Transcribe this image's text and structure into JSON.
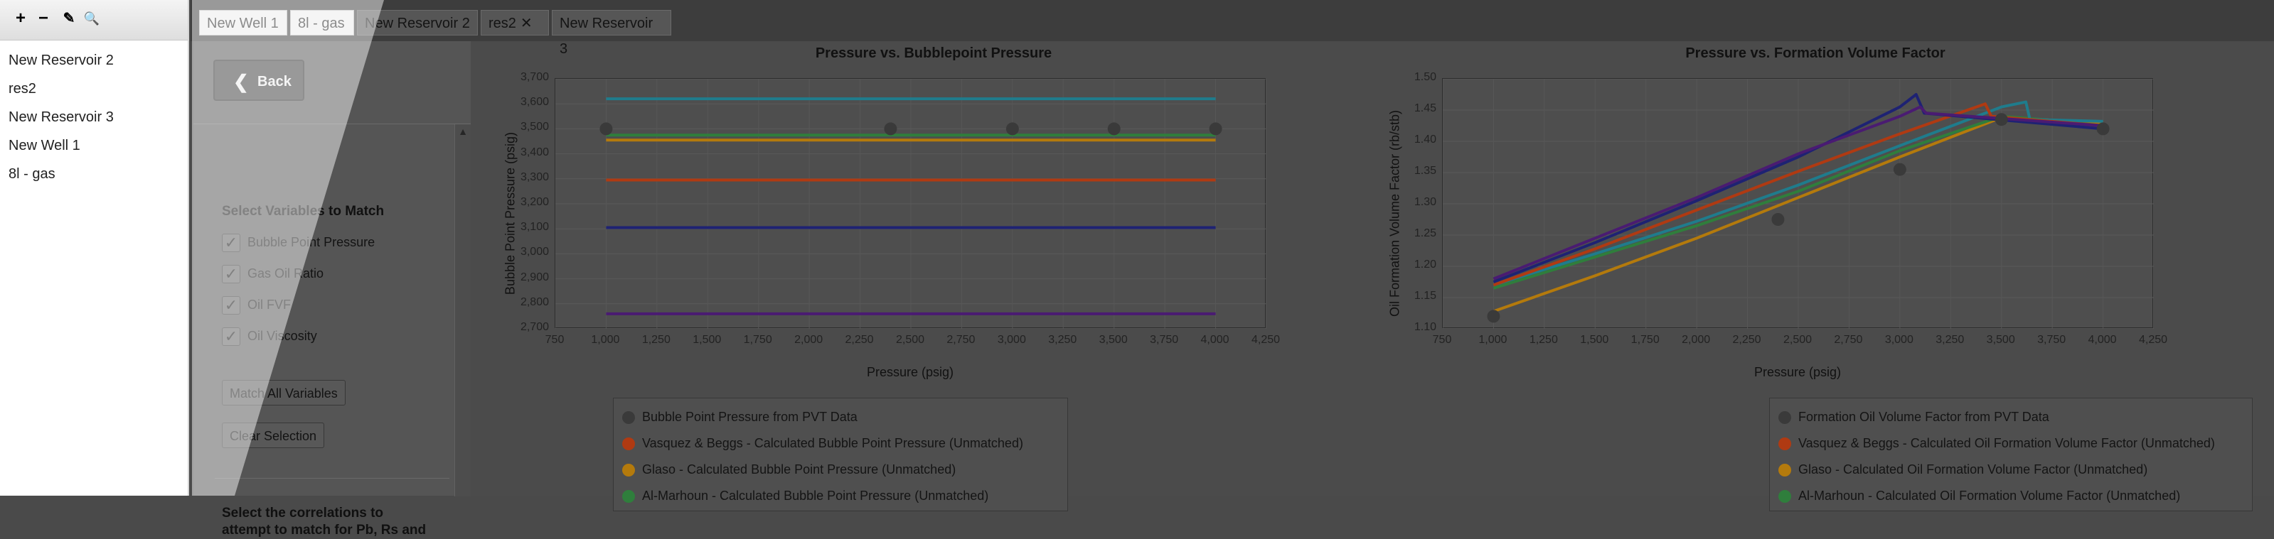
{
  "toolbar": {
    "icons": [
      {
        "name": "add-icon",
        "glyph": "+",
        "color": "#1f9a2c"
      },
      {
        "name": "remove-icon",
        "glyph": "−",
        "color": "#d8211d"
      },
      {
        "name": "edit-icon",
        "glyph": "✎",
        "color": "#e2a21a"
      },
      {
        "name": "search-icon",
        "glyph": "🔍",
        "color": "#2b6cc4"
      }
    ]
  },
  "sidebar": {
    "items": [
      {
        "label": "New Reservoir 2"
      },
      {
        "label": "res2"
      },
      {
        "label": "New Reservoir 3"
      },
      {
        "label": "New Well 1"
      },
      {
        "label": "8l - gas"
      }
    ]
  },
  "tabs": [
    {
      "label": "New Well 1",
      "closable": false
    },
    {
      "label": "8l - gas",
      "closable": false
    },
    {
      "label": "New Reservoir 2",
      "closable": false
    },
    {
      "label": "res2",
      "closable": true,
      "close_glyph": "✕"
    },
    {
      "label": "New Reservoir 3",
      "closable": false
    }
  ],
  "settings": {
    "back_label": "Back",
    "back_glyph": "❮",
    "scroll_up_glyph": "▲",
    "section_title": "Select Variables to Match",
    "checkboxes": [
      {
        "label": "Bubble Point Pressure",
        "checked": true
      },
      {
        "label": "Gas Oil Ratio",
        "checked": true
      },
      {
        "label": "Oil FVF",
        "checked": true
      },
      {
        "label": "Oil Viscosity",
        "checked": true
      }
    ],
    "check_glyph": "✓",
    "match_all_label": "Match All Variables",
    "clear_label": "Clear Selection",
    "correlations_text": "Select the correlations to attempt to match for Pb, Rs and"
  },
  "colors": {
    "pvt": "#3a3a3a",
    "vasquez": "#b03a12",
    "glaso": "#b47a0c",
    "almarhoun": "#2f7e3c",
    "cyan": "#1f7c8c",
    "navy": "#1e2273",
    "purple": "#4a1b72"
  },
  "chart_data": [
    {
      "type": "line",
      "title": "Pressure vs. Bubblepoint Pressure",
      "xlabel": "Pressure (psig)",
      "ylabel": "Bubble Point Pressure (psig)",
      "xlim": [
        750,
        4250
      ],
      "ylim": [
        2700,
        3700
      ],
      "xticks": [
        750,
        1000,
        1250,
        1500,
        1750,
        2000,
        2250,
        2500,
        2750,
        3000,
        3250,
        3500,
        3750,
        4000,
        4250
      ],
      "yticks": [
        2700,
        2800,
        2900,
        3000,
        3100,
        3200,
        3300,
        3400,
        3500,
        3600,
        3700
      ],
      "grid": true,
      "points": {
        "name": "Bubble Point Pressure from PVT Data",
        "x": [
          1000,
          2400,
          3000,
          3500,
          4000
        ],
        "y": [
          3500,
          3500,
          3500,
          3500,
          3500
        ]
      },
      "series": [
        {
          "color_key": "cyan",
          "x": [
            1000,
            4000
          ],
          "y": [
            3620,
            3620
          ]
        },
        {
          "color_key": "almarhoun",
          "x": [
            1000,
            4000
          ],
          "y": [
            3475,
            3475
          ]
        },
        {
          "color_key": "glaso",
          "x": [
            1000,
            4000
          ],
          "y": [
            3455,
            3455
          ]
        },
        {
          "color_key": "vasquez",
          "x": [
            1000,
            4000
          ],
          "y": [
            3295,
            3295
          ]
        },
        {
          "color_key": "navy",
          "x": [
            1000,
            4000
          ],
          "y": [
            3105,
            3105
          ]
        },
        {
          "color_key": "purple",
          "x": [
            1000,
            4000
          ],
          "y": [
            2760,
            2760
          ]
        }
      ],
      "legend": [
        {
          "label": "Bubble Point Pressure from PVT Data",
          "color_key": "pvt"
        },
        {
          "label": "Vasquez & Beggs - Calculated Bubble Point Pressure (Unmatched)",
          "color_key": "vasquez"
        },
        {
          "label": "Glaso - Calculated Bubble Point Pressure (Unmatched)",
          "color_key": "glaso"
        },
        {
          "label": "Al-Marhoun - Calculated Bubble Point Pressure (Unmatched)",
          "color_key": "almarhoun"
        }
      ]
    },
    {
      "type": "line",
      "title": "Pressure vs. Formation Volume Factor",
      "xlabel": "Pressure (psig)",
      "ylabel": "Oil Formation Volume Factor (rb/stb)",
      "xlim": [
        750,
        4250
      ],
      "ylim": [
        1.1,
        1.5
      ],
      "xticks": [
        750,
        1000,
        1250,
        1500,
        1750,
        2000,
        2250,
        2500,
        2750,
        3000,
        3250,
        3500,
        3750,
        4000,
        4250
      ],
      "yticks": [
        1.1,
        1.15,
        1.2,
        1.25,
        1.3,
        1.35,
        1.4,
        1.45,
        1.5
      ],
      "grid": true,
      "points": {
        "name": "Formation Oil Volume Factor from PVT Data",
        "x": [
          1000,
          2400,
          3000,
          3500,
          4000
        ],
        "y": [
          1.12,
          1.275,
          1.355,
          1.435,
          1.42
        ]
      },
      "series": [
        {
          "color_key": "glaso",
          "x": [
            1000,
            1500,
            2000,
            2500,
            3000,
            3500,
            3620,
            4000
          ],
          "y": [
            1.128,
            1.185,
            1.245,
            1.31,
            1.375,
            1.438,
            1.436,
            1.43
          ]
        },
        {
          "color_key": "almarhoun",
          "x": [
            1000,
            1500,
            2000,
            2500,
            3000,
            3500,
            3700,
            4000
          ],
          "y": [
            1.165,
            1.215,
            1.265,
            1.32,
            1.385,
            1.44,
            1.435,
            1.425
          ]
        },
        {
          "color_key": "cyan",
          "x": [
            1000,
            1500,
            2000,
            2500,
            3000,
            3500,
            3620,
            3640,
            4000
          ],
          "y": [
            1.17,
            1.22,
            1.272,
            1.33,
            1.393,
            1.455,
            1.463,
            1.435,
            1.432
          ]
        },
        {
          "color_key": "vasquez",
          "x": [
            1000,
            1500,
            2000,
            2500,
            3000,
            3420,
            3450,
            4000
          ],
          "y": [
            1.17,
            1.228,
            1.29,
            1.352,
            1.412,
            1.46,
            1.44,
            1.425
          ]
        },
        {
          "color_key": "navy",
          "x": [
            1000,
            1500,
            2000,
            2500,
            3000,
            3080,
            3120,
            4000
          ],
          "y": [
            1.175,
            1.238,
            1.305,
            1.375,
            1.455,
            1.475,
            1.445,
            1.42
          ]
        },
        {
          "color_key": "purple",
          "x": [
            1000,
            1500,
            2000,
            2500,
            3000,
            3100,
            3130,
            4000
          ],
          "y": [
            1.18,
            1.245,
            1.31,
            1.38,
            1.44,
            1.455,
            1.445,
            1.425
          ]
        }
      ],
      "legend": [
        {
          "label": "Formation Oil Volume Factor from PVT Data",
          "color_key": "pvt"
        },
        {
          "label": "Vasquez & Beggs - Calculated Oil Formation Volume Factor (Unmatched)",
          "color_key": "vasquez"
        },
        {
          "label": "Glaso - Calculated Oil Formation Volume Factor (Unmatched)",
          "color_key": "glaso"
        },
        {
          "label": "Al-Marhoun - Calculated Oil Formation Volume Factor (Unmatched)",
          "color_key": "almarhoun"
        }
      ]
    }
  ]
}
